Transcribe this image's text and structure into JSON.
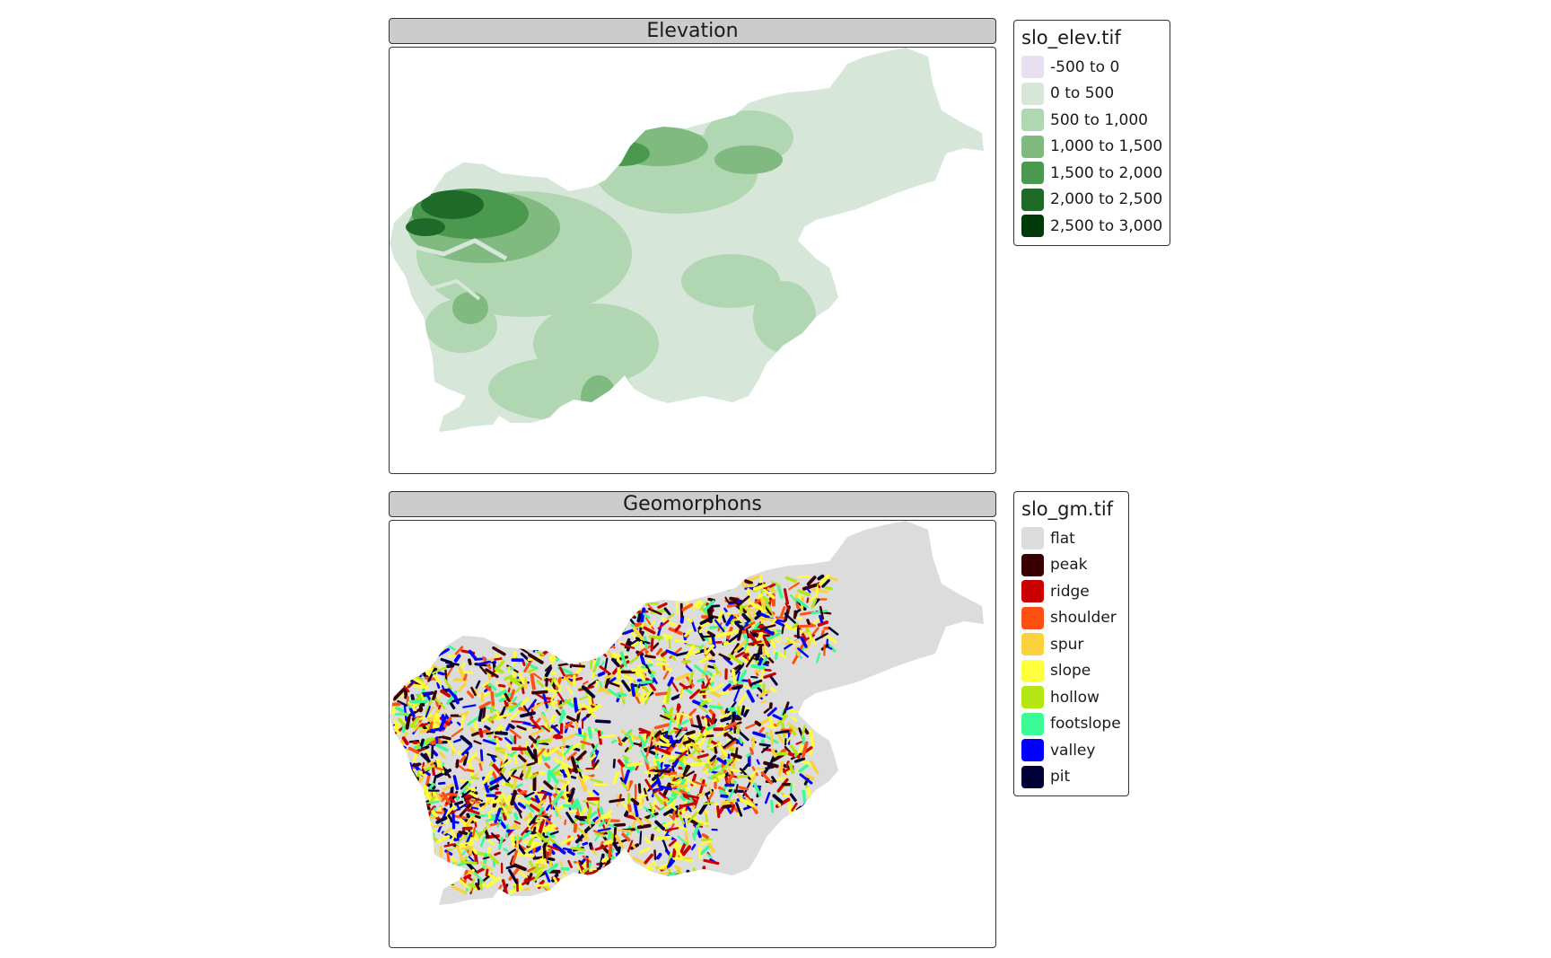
{
  "panels": [
    {
      "title": "Elevation",
      "legend": {
        "title": "slo_elev.tif",
        "items": [
          {
            "label": "-500 to 0",
            "color": "#e8dff0"
          },
          {
            "label": "0 to 500",
            "color": "#d6e6d8"
          },
          {
            "label": "500 to 1,000",
            "color": "#b1d6b2"
          },
          {
            "label": "1,000 to 1,500",
            "color": "#80ba81"
          },
          {
            "label": "1,500 to 2,000",
            "color": "#4b984f"
          },
          {
            "label": "2,000 to 2,500",
            "color": "#1f6a28"
          },
          {
            "label": "2,500 to 3,000",
            "color": "#00390a"
          }
        ]
      }
    },
    {
      "title": "Geomorphons",
      "legend": {
        "title": "slo_gm.tif",
        "items": [
          {
            "label": "flat",
            "color": "#dcdcdc"
          },
          {
            "label": "peak",
            "color": "#380000"
          },
          {
            "label": "ridge",
            "color": "#c80000"
          },
          {
            "label": "shoulder",
            "color": "#ff5014"
          },
          {
            "label": "spur",
            "color": "#fad23c"
          },
          {
            "label": "slope",
            "color": "#ffff3c"
          },
          {
            "label": "hollow",
            "color": "#b4e614"
          },
          {
            "label": "footslope",
            "color": "#3cfa96"
          },
          {
            "label": "valley",
            "color": "#0000ff"
          },
          {
            "label": "pit",
            "color": "#000038"
          }
        ]
      }
    }
  ]
}
